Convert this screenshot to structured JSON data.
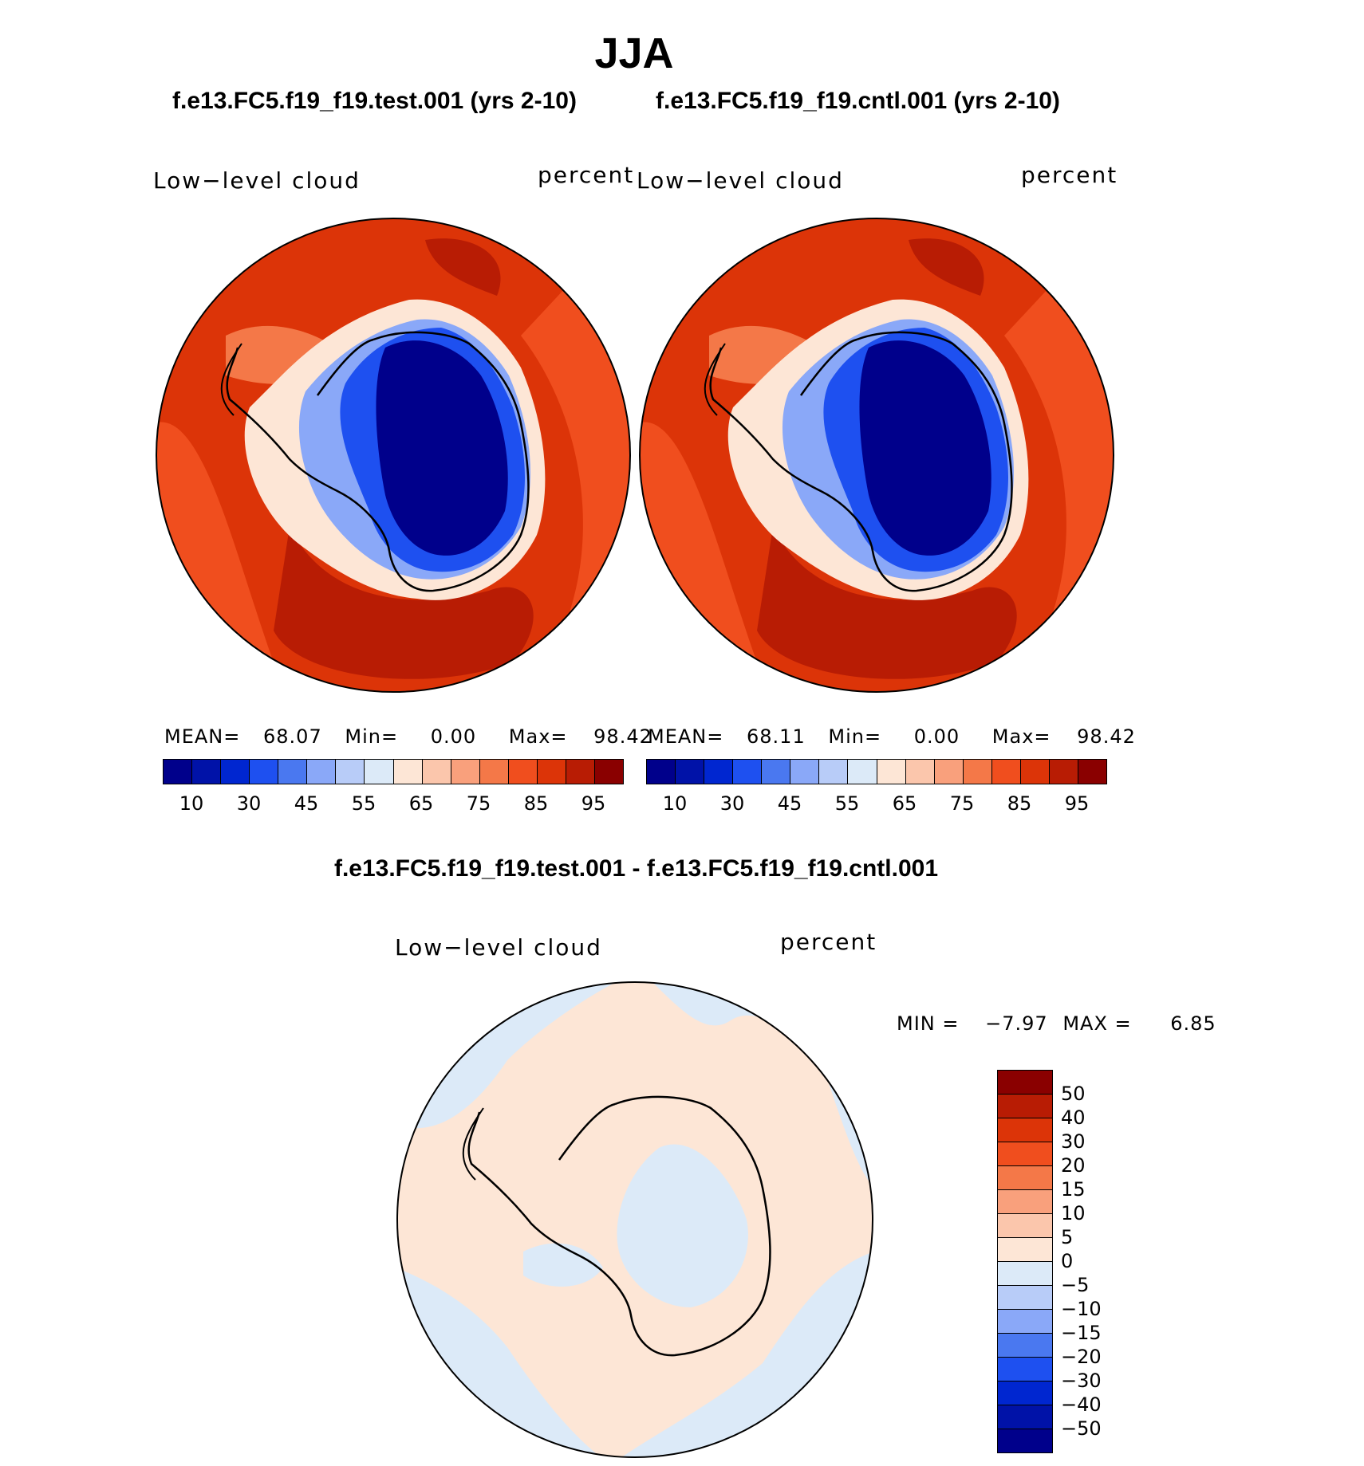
{
  "season": "JJA",
  "panels": [
    {
      "case_title": "f.e13.FC5.f19_f19.test.001 (yrs 2-10)",
      "variable": "Low−level cloud",
      "units": "percent",
      "mean_label": "MEAN=",
      "mean": "68.07",
      "min_label": "Min=",
      "min": "0.00",
      "max_label": "Max=",
      "max": "98.42"
    },
    {
      "case_title": "f.e13.FC5.f19_f19.cntl.001 (yrs 2-10)",
      "variable": "Low−level cloud",
      "units": "percent",
      "mean_label": "MEAN=",
      "mean": "68.11",
      "min_label": "Min=",
      "min": "0.00",
      "max_label": "Max=",
      "max": "98.42"
    }
  ],
  "abs_colorbar": {
    "colors": [
      "#00008b",
      "#0012a8",
      "#0026d0",
      "#1e50f0",
      "#4a78f0",
      "#8aa8f8",
      "#b8ccf8",
      "#dceaf8",
      "#fde6d6",
      "#fbc6ac",
      "#f9a07c",
      "#f47848",
      "#f04e1e",
      "#dc3408",
      "#b81c04",
      "#8a0000"
    ],
    "tick_labels": [
      "10",
      "30",
      "45",
      "55",
      "65",
      "75",
      "85",
      "95"
    ]
  },
  "diff": {
    "title": "f.e13.FC5.f19_f19.test.001 - f.e13.FC5.f19_f19.cntl.001",
    "variable": "Low−level cloud",
    "units": "percent",
    "min_label": "MIN =",
    "min": "−7.97",
    "max_label": "MAX =",
    "max": "6.85",
    "colorbar": {
      "colors": [
        "#8a0000",
        "#b81c04",
        "#dc3408",
        "#f04e1e",
        "#f47848",
        "#f9a07c",
        "#fbc6ac",
        "#fde6d6",
        "#dceaf8",
        "#b8ccf8",
        "#8aa8f8",
        "#4a78f0",
        "#1e50f0",
        "#0026d0",
        "#0012a8",
        "#00008b"
      ],
      "tick_labels": [
        "50",
        "40",
        "30",
        "20",
        "15",
        "10",
        "5",
        "0",
        "−5",
        "−10",
        "−15",
        "−20",
        "−30",
        "−40",
        "−50"
      ]
    }
  },
  "palette": {
    "ocean_dark": "#b81c04",
    "ocean_main": "#dc3408",
    "ocean_light": "#f04e1e",
    "ocean_pale": "#f47848",
    "coast_white": "#fde6d6",
    "ice_light": "#8aa8f8",
    "ice_mid": "#1e50f0",
    "ice_deep": "#00008b",
    "diff_pos": "#fde6d6",
    "diff_neg": "#dceaf8"
  }
}
